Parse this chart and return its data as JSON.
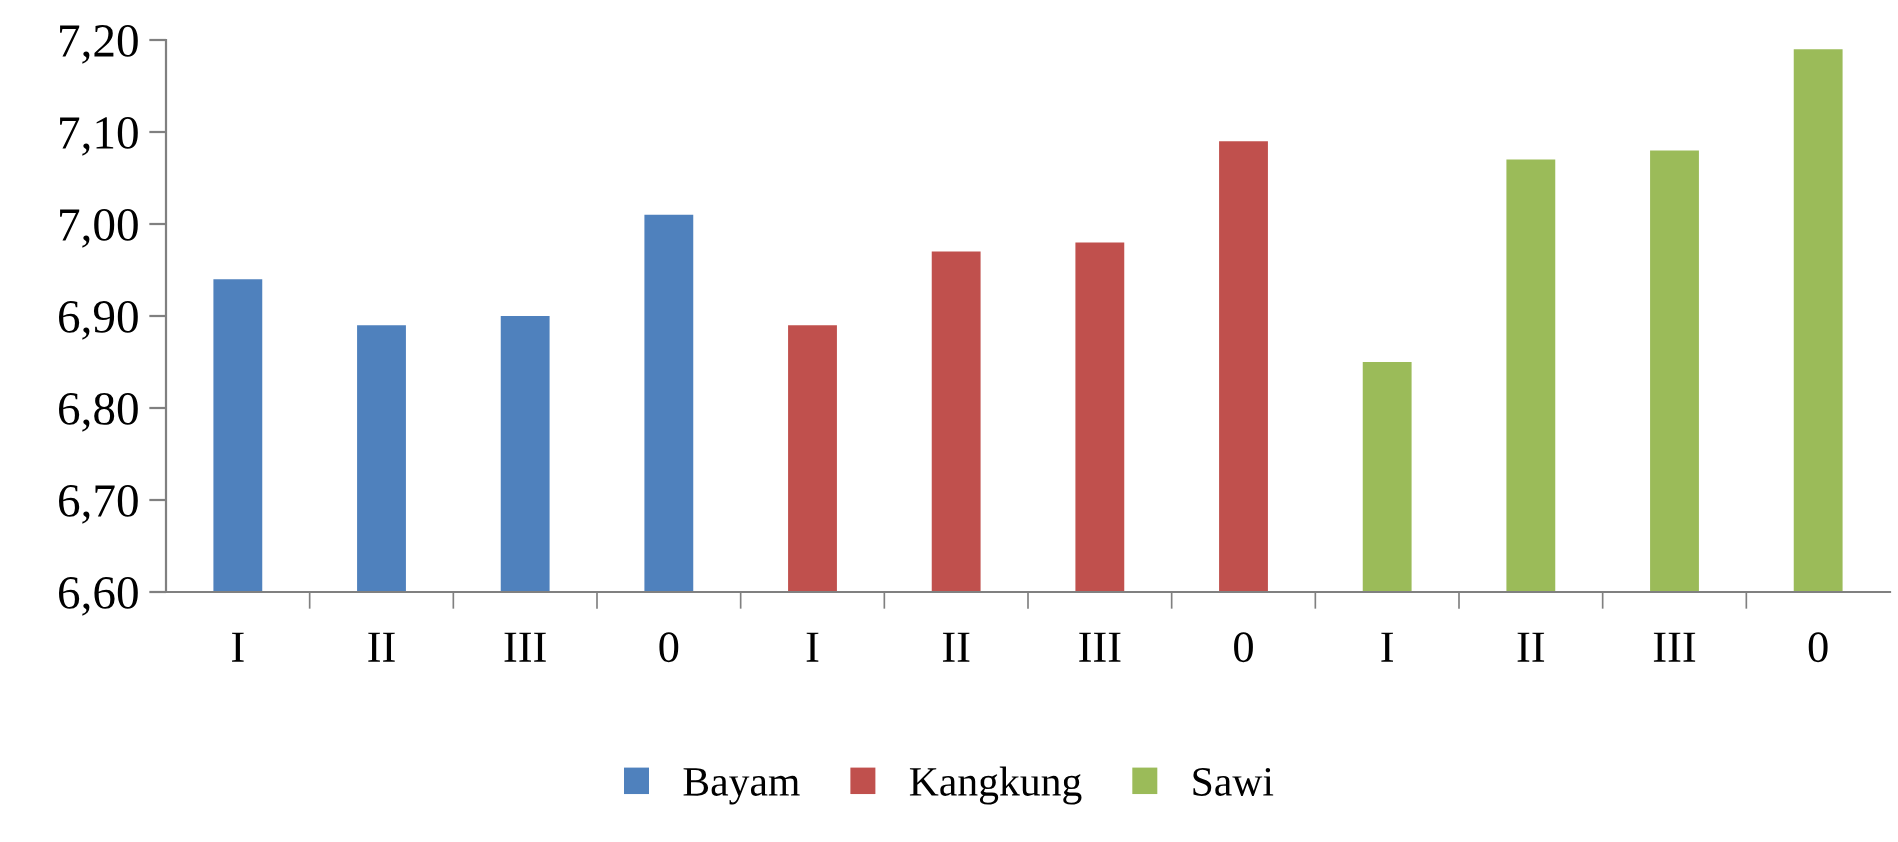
{
  "chart_data": {
    "type": "bar",
    "categories": [
      "I",
      "II",
      "III",
      "0",
      "I",
      "II",
      "III",
      "0",
      "I",
      "II",
      "III",
      "0"
    ],
    "series": [
      {
        "name": "Bayam",
        "color": "#4f81bd",
        "values": [
          6.94,
          6.89,
          6.9,
          7.01,
          null,
          null,
          null,
          null,
          null,
          null,
          null,
          null
        ]
      },
      {
        "name": "Kangkung",
        "color": "#c0504d",
        "values": [
          null,
          null,
          null,
          null,
          6.89,
          6.97,
          6.98,
          7.09,
          null,
          null,
          null,
          null
        ]
      },
      {
        "name": "Sawi",
        "color": "#9bbb59",
        "values": [
          null,
          null,
          null,
          null,
          null,
          null,
          null,
          null,
          6.85,
          7.07,
          7.08,
          7.19
        ]
      }
    ],
    "ylim": [
      6.6,
      7.2
    ],
    "yticks": [
      {
        "value": 6.6,
        "label": "6,60"
      },
      {
        "value": 6.7,
        "label": "6,70"
      },
      {
        "value": 6.8,
        "label": "6,80"
      },
      {
        "value": 6.9,
        "label": "6,90"
      },
      {
        "value": 7.0,
        "label": "7,00"
      },
      {
        "value": 7.1,
        "label": "7,10"
      },
      {
        "value": 7.2,
        "label": "7,20"
      }
    ],
    "grid": false,
    "legend": "bottom"
  }
}
